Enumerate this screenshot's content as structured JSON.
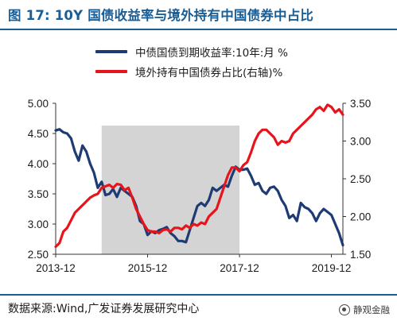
{
  "header": {
    "title": "图 17:  10Y 国债收益率与境外持有中国债券中占比"
  },
  "footer": {
    "source": "数据来源:Wind,广发证券发展研究中心",
    "watermark": "静观金融"
  },
  "colors": {
    "title": "#1a5e96",
    "left_series": "#1f3b73",
    "right_series": "#e8141b",
    "shade": "#d4d4d4"
  },
  "chart_data": {
    "type": "line",
    "title": "",
    "x_ticks": [
      "2013-12",
      "2015-12",
      "2017-12",
      "2019-12"
    ],
    "y_left": {
      "range": [
        2.5,
        5.0
      ],
      "ticks": [
        "5.00",
        "4.50",
        "4.00",
        "3.50",
        "3.00",
        "2.50"
      ]
    },
    "y_right": {
      "range": [
        1.5,
        3.5
      ],
      "ticks": [
        "3.50",
        "3.00",
        "2.50",
        "2.00",
        "1.50"
      ]
    },
    "grid": false,
    "legend_position": "top-left",
    "shaded_period": [
      "2014-12",
      "2017-12"
    ],
    "series": [
      {
        "name": "中债国债到期收益率:10年:月 %",
        "axis": "left",
        "color": "#1f3b73",
        "points": [
          [
            "2013-12",
            4.55
          ],
          [
            "2014-01",
            4.57
          ],
          [
            "2014-02",
            4.52
          ],
          [
            "2014-03",
            4.5
          ],
          [
            "2014-04",
            4.42
          ],
          [
            "2014-05",
            4.2
          ],
          [
            "2014-06",
            4.05
          ],
          [
            "2014-07",
            4.3
          ],
          [
            "2014-08",
            4.2
          ],
          [
            "2014-09",
            4.0
          ],
          [
            "2014-10",
            3.85
          ],
          [
            "2014-11",
            3.6
          ],
          [
            "2014-12",
            3.7
          ],
          [
            "2015-01",
            3.48
          ],
          [
            "2015-02",
            3.5
          ],
          [
            "2015-03",
            3.58
          ],
          [
            "2015-04",
            3.45
          ],
          [
            "2015-05",
            3.6
          ],
          [
            "2015-06",
            3.55
          ],
          [
            "2015-07",
            3.5
          ],
          [
            "2015-08",
            3.45
          ],
          [
            "2015-09",
            3.3
          ],
          [
            "2015-10",
            3.05
          ],
          [
            "2015-11",
            3.0
          ],
          [
            "2015-12",
            2.82
          ],
          [
            "2016-01",
            2.88
          ],
          [
            "2016-02",
            2.85
          ],
          [
            "2016-03",
            2.9
          ],
          [
            "2016-04",
            2.92
          ],
          [
            "2016-05",
            2.95
          ],
          [
            "2016-06",
            2.85
          ],
          [
            "2016-07",
            2.8
          ],
          [
            "2016-08",
            2.72
          ],
          [
            "2016-09",
            2.72
          ],
          [
            "2016-10",
            2.7
          ],
          [
            "2016-11",
            2.9
          ],
          [
            "2016-12",
            3.1
          ],
          [
            "2017-01",
            3.3
          ],
          [
            "2017-02",
            3.35
          ],
          [
            "2017-03",
            3.3
          ],
          [
            "2017-04",
            3.4
          ],
          [
            "2017-05",
            3.6
          ],
          [
            "2017-06",
            3.55
          ],
          [
            "2017-07",
            3.6
          ],
          [
            "2017-08",
            3.65
          ],
          [
            "2017-09",
            3.62
          ],
          [
            "2017-10",
            3.8
          ],
          [
            "2017-11",
            3.95
          ],
          [
            "2017-12",
            3.9
          ],
          [
            "2018-01",
            3.9
          ],
          [
            "2018-02",
            3.92
          ],
          [
            "2018-03",
            3.8
          ],
          [
            "2018-04",
            3.65
          ],
          [
            "2018-05",
            3.68
          ],
          [
            "2018-06",
            3.55
          ],
          [
            "2018-07",
            3.5
          ],
          [
            "2018-08",
            3.6
          ],
          [
            "2018-09",
            3.62
          ],
          [
            "2018-10",
            3.55
          ],
          [
            "2018-11",
            3.4
          ],
          [
            "2018-12",
            3.3
          ],
          [
            "2019-01",
            3.1
          ],
          [
            "2019-02",
            3.15
          ],
          [
            "2019-03",
            3.05
          ],
          [
            "2019-04",
            3.35
          ],
          [
            "2019-05",
            3.28
          ],
          [
            "2019-06",
            3.25
          ],
          [
            "2019-07",
            3.18
          ],
          [
            "2019-08",
            3.05
          ],
          [
            "2019-09",
            3.18
          ],
          [
            "2019-10",
            3.25
          ],
          [
            "2019-11",
            3.2
          ],
          [
            "2019-12",
            3.15
          ],
          [
            "2020-01",
            3.0
          ],
          [
            "2020-02",
            2.85
          ],
          [
            "2020-03",
            2.65
          ]
        ]
      },
      {
        "name": "境外持有中国债券占比(右轴)%",
        "axis": "right",
        "color": "#e8141b",
        "points": [
          [
            "2013-12",
            1.6
          ],
          [
            "2014-01",
            1.65
          ],
          [
            "2014-02",
            1.8
          ],
          [
            "2014-03",
            1.85
          ],
          [
            "2014-04",
            1.95
          ],
          [
            "2014-05",
            2.05
          ],
          [
            "2014-06",
            2.1
          ],
          [
            "2014-07",
            2.15
          ],
          [
            "2014-08",
            2.2
          ],
          [
            "2014-09",
            2.25
          ],
          [
            "2014-10",
            2.28
          ],
          [
            "2014-11",
            2.3
          ],
          [
            "2014-12",
            2.38
          ],
          [
            "2015-01",
            2.4
          ],
          [
            "2015-02",
            2.42
          ],
          [
            "2015-03",
            2.38
          ],
          [
            "2015-04",
            2.43
          ],
          [
            "2015-05",
            2.42
          ],
          [
            "2015-06",
            2.35
          ],
          [
            "2015-07",
            2.38
          ],
          [
            "2015-08",
            2.25
          ],
          [
            "2015-09",
            2.1
          ],
          [
            "2015-10",
            2.0
          ],
          [
            "2015-11",
            1.9
          ],
          [
            "2015-12",
            1.82
          ],
          [
            "2016-01",
            1.8
          ],
          [
            "2016-02",
            1.8
          ],
          [
            "2016-03",
            1.78
          ],
          [
            "2016-04",
            1.82
          ],
          [
            "2016-05",
            1.83
          ],
          [
            "2016-06",
            1.8
          ],
          [
            "2016-07",
            1.85
          ],
          [
            "2016-08",
            1.85
          ],
          [
            "2016-09",
            1.83
          ],
          [
            "2016-10",
            1.88
          ],
          [
            "2016-11",
            1.85
          ],
          [
            "2016-12",
            1.9
          ],
          [
            "2017-01",
            1.88
          ],
          [
            "2017-02",
            1.92
          ],
          [
            "2017-03",
            1.9
          ],
          [
            "2017-04",
            2.0
          ],
          [
            "2017-05",
            2.05
          ],
          [
            "2017-06",
            2.1
          ],
          [
            "2017-07",
            2.25
          ],
          [
            "2017-08",
            2.4
          ],
          [
            "2017-09",
            2.55
          ],
          [
            "2017-10",
            2.65
          ],
          [
            "2017-11",
            2.65
          ],
          [
            "2017-12",
            2.6
          ],
          [
            "2018-01",
            2.68
          ],
          [
            "2018-02",
            2.72
          ],
          [
            "2018-03",
            2.85
          ],
          [
            "2018-04",
            3.0
          ],
          [
            "2018-05",
            3.1
          ],
          [
            "2018-06",
            3.15
          ],
          [
            "2018-07",
            3.15
          ],
          [
            "2018-08",
            3.1
          ],
          [
            "2018-09",
            3.05
          ],
          [
            "2018-10",
            2.95
          ],
          [
            "2018-11",
            3.0
          ],
          [
            "2018-12",
            2.98
          ],
          [
            "2019-01",
            3.0
          ],
          [
            "2019-02",
            3.1
          ],
          [
            "2019-03",
            3.15
          ],
          [
            "2019-04",
            3.2
          ],
          [
            "2019-05",
            3.25
          ],
          [
            "2019-06",
            3.3
          ],
          [
            "2019-07",
            3.35
          ],
          [
            "2019-08",
            3.42
          ],
          [
            "2019-09",
            3.45
          ],
          [
            "2019-10",
            3.4
          ],
          [
            "2019-11",
            3.48
          ],
          [
            "2019-12",
            3.45
          ],
          [
            "2020-01",
            3.38
          ],
          [
            "2020-02",
            3.42
          ],
          [
            "2020-03",
            3.35
          ]
        ]
      }
    ]
  }
}
